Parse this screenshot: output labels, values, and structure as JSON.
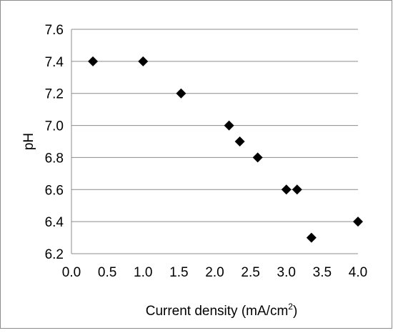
{
  "chart_data": {
    "type": "scatter",
    "title": "",
    "xlabel": "Current density (mA/cm",
    "xlabel_sup": "2",
    "xlabel_close": ")",
    "ylabel": "pH",
    "xlim": [
      0.0,
      4.0
    ],
    "ylim": [
      6.2,
      7.6
    ],
    "x_ticks": [
      "0.0",
      "0.5",
      "1.0",
      "1.5",
      "2.0",
      "2.5",
      "3.0",
      "3.5",
      "4.0"
    ],
    "y_ticks": [
      "7.6",
      "7.4",
      "7.2",
      "7.0",
      "6.8",
      "6.6",
      "6.4",
      "6.2"
    ],
    "grid": "horizontal",
    "legend": "none",
    "marker": "diamond",
    "marker_color": "#000000",
    "points": [
      {
        "x": 0.3,
        "y": 7.4
      },
      {
        "x": 1.0,
        "y": 7.4
      },
      {
        "x": 1.53,
        "y": 7.2
      },
      {
        "x": 2.2,
        "y": 7.0
      },
      {
        "x": 2.35,
        "y": 6.9
      },
      {
        "x": 2.6,
        "y": 6.8
      },
      {
        "x": 3.0,
        "y": 6.6
      },
      {
        "x": 3.15,
        "y": 6.6
      },
      {
        "x": 3.35,
        "y": 6.3
      },
      {
        "x": 4.0,
        "y": 6.4
      }
    ]
  }
}
